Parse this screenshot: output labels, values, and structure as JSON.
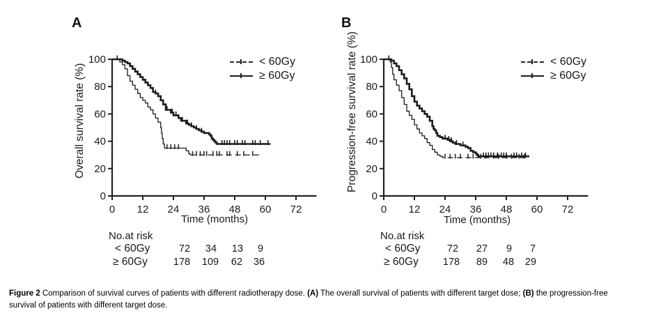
{
  "panels": [
    {
      "letter": "A"
    },
    {
      "letter": "B"
    }
  ],
  "colors": {
    "axis": "#222222",
    "text": "#1a1a1a",
    "curve_thin": "#2a2a2a",
    "curve_thick": "#1c1c1c"
  },
  "chart_data": [
    {
      "type": "line",
      "subtype": "kaplan-meier-step",
      "panel": "A",
      "xlabel": "Time (months)",
      "ylabel": "Overall survival rate (%)",
      "xlim": [
        0,
        80
      ],
      "ylim": [
        0,
        100
      ],
      "xticks": [
        0,
        12,
        24,
        36,
        48,
        60,
        72
      ],
      "yticks": [
        0,
        20,
        40,
        60,
        80,
        100
      ],
      "grid": false,
      "legend_position": "top-right",
      "series": [
        {
          "name": "< 60Gy",
          "style": "thin, dashed tail",
          "width": 1.4,
          "dash_from": 31,
          "points": [
            [
              0,
              100
            ],
            [
              2,
              100
            ],
            [
              3,
              98
            ],
            [
              4,
              96
            ],
            [
              5,
              93
            ],
            [
              6,
              88
            ],
            [
              7,
              84
            ],
            [
              8,
              81
            ],
            [
              9,
              78
            ],
            [
              10,
              75
            ],
            [
              11,
              72
            ],
            [
              12,
              70
            ],
            [
              13,
              68
            ],
            [
              14,
              65
            ],
            [
              15,
              63
            ],
            [
              16,
              60
            ],
            [
              17,
              57
            ],
            [
              18,
              54
            ],
            [
              19,
              50
            ],
            [
              19.3,
              46
            ],
            [
              19.6,
              42
            ],
            [
              20,
              38
            ],
            [
              20.5,
              35
            ],
            [
              29,
              33
            ],
            [
              30,
              31
            ],
            [
              30.5,
              30
            ],
            [
              58,
              30
            ]
          ],
          "censor_ticks": [
            [
              2,
              100
            ],
            [
              21.5,
              35
            ],
            [
              23,
              35
            ],
            [
              24.5,
              35
            ],
            [
              26,
              35
            ],
            [
              31.5,
              30
            ],
            [
              33,
              30
            ],
            [
              34.5,
              30
            ],
            [
              36,
              30
            ],
            [
              37,
              30
            ],
            [
              39.5,
              30
            ],
            [
              41,
              30
            ],
            [
              42,
              30
            ],
            [
              45,
              30
            ],
            [
              46,
              30
            ],
            [
              49,
              30
            ],
            [
              51.5,
              30
            ],
            [
              55,
              30
            ]
          ]
        },
        {
          "name": "≥ 60Gy",
          "style": "thick solid",
          "width": 2.6,
          "dash_from": null,
          "points": [
            [
              0,
              100
            ],
            [
              3,
              100
            ],
            [
              4,
              99
            ],
            [
              5,
              98
            ],
            [
              6,
              97
            ],
            [
              7,
              95
            ],
            [
              8,
              93
            ],
            [
              9,
              91
            ],
            [
              10,
              89
            ],
            [
              11,
              87
            ],
            [
              12,
              85
            ],
            [
              13,
              83
            ],
            [
              14,
              81
            ],
            [
              15,
              79
            ],
            [
              16,
              76
            ],
            [
              17,
              75
            ],
            [
              18,
              73
            ],
            [
              19,
              70
            ],
            [
              20,
              67
            ],
            [
              21,
              63
            ],
            [
              23,
              61
            ],
            [
              24,
              59
            ],
            [
              26,
              57
            ],
            [
              27,
              55
            ],
            [
              29,
              53
            ],
            [
              30,
              52
            ],
            [
              31,
              51
            ],
            [
              32,
              50
            ],
            [
              33,
              49
            ],
            [
              34,
              48
            ],
            [
              35,
              47
            ],
            [
              36,
              46
            ],
            [
              38,
              45
            ],
            [
              38.5,
              44
            ],
            [
              39,
              42
            ],
            [
              39.5,
              41
            ],
            [
              40,
              40
            ],
            [
              40.5,
              39
            ],
            [
              41,
              38
            ],
            [
              62,
              38
            ]
          ],
          "censor_ticks": [
            [
              2,
              100
            ],
            [
              13,
              83
            ],
            [
              17,
              75
            ],
            [
              21.5,
              63
            ],
            [
              23.5,
              61
            ],
            [
              25,
              59
            ],
            [
              27.5,
              55
            ],
            [
              29.5,
              53
            ],
            [
              31,
              51
            ],
            [
              33,
              49
            ],
            [
              35,
              47
            ],
            [
              43,
              38
            ],
            [
              44,
              38
            ],
            [
              45,
              38
            ],
            [
              46,
              38
            ],
            [
              48,
              38
            ],
            [
              49,
              38
            ],
            [
              51,
              38
            ],
            [
              52,
              38
            ],
            [
              55,
              38
            ],
            [
              56,
              38
            ],
            [
              58,
              38
            ],
            [
              61,
              38
            ]
          ]
        }
      ],
      "at_risk": {
        "title": "No.at risk",
        "rows": [
          {
            "label": "< 60Gy",
            "values": [
              "72",
              "34",
              "13",
              "9"
            ]
          },
          {
            "label": "≥ 60Gy",
            "values": [
              "178",
              "109",
              "62",
              "36"
            ]
          }
        ]
      }
    },
    {
      "type": "line",
      "subtype": "kaplan-meier-step",
      "panel": "B",
      "xlabel": "Time (months)",
      "ylabel": "Progression-free survival rate (%)",
      "xlim": [
        0,
        80
      ],
      "ylim": [
        0,
        100
      ],
      "xticks": [
        0,
        12,
        24,
        36,
        48,
        60,
        72
      ],
      "yticks": [
        0,
        20,
        40,
        60,
        80,
        100
      ],
      "grid": false,
      "legend_position": "top-right",
      "series": [
        {
          "name": "< 60Gy",
          "style": "thin, dashed tail",
          "width": 1.4,
          "dash_from": 23,
          "points": [
            [
              0,
              100
            ],
            [
              1.5,
              100
            ],
            [
              2.5,
              98
            ],
            [
              3,
              94
            ],
            [
              3.5,
              89
            ],
            [
              4,
              85
            ],
            [
              5,
              81
            ],
            [
              6,
              77
            ],
            [
              7,
              72
            ],
            [
              8,
              67
            ],
            [
              9,
              62
            ],
            [
              10,
              59
            ],
            [
              11,
              56
            ],
            [
              12,
              52
            ],
            [
              13,
              49
            ],
            [
              14,
              46
            ],
            [
              15,
              44
            ],
            [
              16,
              42
            ],
            [
              17,
              39
            ],
            [
              18,
              37
            ],
            [
              19,
              34
            ],
            [
              20,
              32
            ],
            [
              21,
              30
            ],
            [
              22,
              29
            ],
            [
              23,
              28
            ],
            [
              57,
              28
            ]
          ],
          "censor_ticks": [
            [
              2,
              100
            ],
            [
              24,
              28
            ],
            [
              26,
              28
            ],
            [
              28,
              28
            ],
            [
              30,
              28
            ],
            [
              33,
              28
            ],
            [
              35,
              28
            ],
            [
              38,
              28
            ],
            [
              40,
              28
            ],
            [
              43,
              28
            ],
            [
              45,
              28
            ],
            [
              48,
              28
            ],
            [
              50,
              28
            ],
            [
              53,
              28
            ],
            [
              55,
              28
            ]
          ]
        },
        {
          "name": "≥ 60Gy",
          "style": "thick solid",
          "width": 2.6,
          "dash_from": null,
          "points": [
            [
              0,
              100
            ],
            [
              2.5,
              100
            ],
            [
              3,
              99
            ],
            [
              4,
              97
            ],
            [
              5,
              95
            ],
            [
              6,
              92
            ],
            [
              7,
              89
            ],
            [
              8,
              86
            ],
            [
              9,
              82
            ],
            [
              10,
              78
            ],
            [
              11,
              73
            ],
            [
              12,
              69
            ],
            [
              13,
              66
            ],
            [
              14,
              64
            ],
            [
              15,
              62
            ],
            [
              16,
              60
            ],
            [
              17,
              58
            ],
            [
              18,
              55
            ],
            [
              19,
              51
            ],
            [
              19.5,
              49
            ],
            [
              20,
              48
            ],
            [
              20.5,
              46
            ],
            [
              21,
              44
            ],
            [
              22,
              43
            ],
            [
              23,
              42
            ],
            [
              25,
              41
            ],
            [
              26,
              40
            ],
            [
              27,
              39
            ],
            [
              28,
              38
            ],
            [
              30,
              37
            ],
            [
              32,
              36
            ],
            [
              33,
              35
            ],
            [
              34,
              33
            ],
            [
              35,
              32
            ],
            [
              36,
              31
            ],
            [
              36.5,
              30
            ],
            [
              37,
              29
            ],
            [
              57,
              29
            ]
          ],
          "censor_ticks": [
            [
              2,
              100
            ],
            [
              24,
              42
            ],
            [
              25.5,
              41
            ],
            [
              26.5,
              40
            ],
            [
              28.5,
              38
            ],
            [
              31,
              37
            ],
            [
              39,
              29
            ],
            [
              40,
              29
            ],
            [
              41,
              29
            ],
            [
              42,
              29
            ],
            [
              43,
              29
            ],
            [
              44.5,
              29
            ],
            [
              46,
              29
            ],
            [
              47,
              29
            ],
            [
              48,
              29
            ],
            [
              51,
              29
            ],
            [
              52,
              29
            ],
            [
              54,
              29
            ],
            [
              55.5,
              29
            ]
          ]
        }
      ],
      "at_risk": {
        "title": "No.at risk",
        "rows": [
          {
            "label": "< 60Gy",
            "values": [
              "72",
              "27",
              "9",
              "7"
            ]
          },
          {
            "label": "≥ 60Gy",
            "values": [
              "178",
              "89",
              "48",
              "29"
            ]
          }
        ]
      }
    }
  ],
  "figure_caption": {
    "fig": "Figure 2",
    "s1": " Comparison of survival curves of patients with different radiotherapy dose. ",
    "a": "(A)",
    "s2": " The overall survival of patients with different target dose; ",
    "b": "(B)",
    "s3": " the progression-free",
    "line2": "survival of patients with different target dose."
  }
}
